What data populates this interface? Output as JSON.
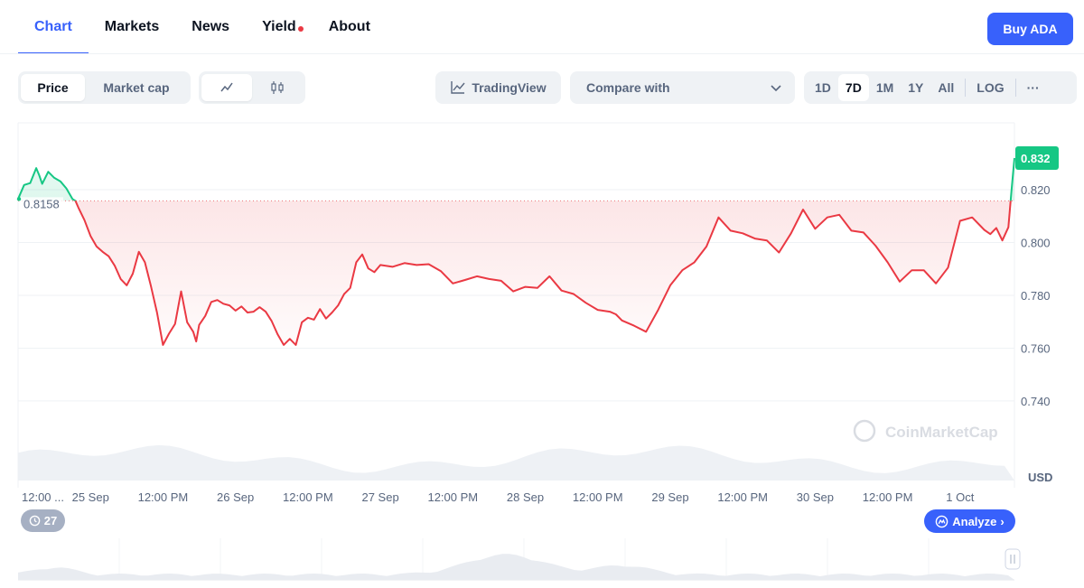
{
  "nav": {
    "tabs": [
      {
        "label": "Chart"
      },
      {
        "label": "Markets"
      },
      {
        "label": "News"
      },
      {
        "label": "Yield"
      },
      {
        "label": "About"
      }
    ],
    "buy_label": "Buy ADA"
  },
  "toolbar": {
    "price_label": "Price",
    "marketcap_label": "Market cap",
    "tradingview_label": "TradingView",
    "compare_label": "Compare with",
    "ranges": [
      "1D",
      "7D",
      "1M",
      "1Y",
      "All"
    ],
    "log_label": "LOG",
    "more_label": "···"
  },
  "history_count": "27",
  "analyze_label": "Analyze",
  "watermark": "CoinMarketCap",
  "colors": {
    "up": "#16c784",
    "down": "#ea3943",
    "accent": "#3861fb"
  },
  "chart_data": {
    "type": "line",
    "title": "",
    "xlabel": "",
    "ylabel": "USD",
    "unit_label": "USD",
    "ylim": [
      0.73,
      0.85
    ],
    "yticks": [
      0.74,
      0.76,
      0.78,
      0.8,
      0.82
    ],
    "ytick_labels": [
      "0.740",
      "0.760",
      "0.780",
      "0.800",
      "0.820"
    ],
    "xtick_labels": [
      "12:00 ...",
      "25 Sep",
      "12:00 PM",
      "26 Sep",
      "12:00 PM",
      "27 Sep",
      "12:00 PM",
      "28 Sep",
      "12:00 PM",
      "29 Sep",
      "12:00 PM",
      "30 Sep",
      "12:00 PM",
      "1 Oct"
    ],
    "xtick_hours": [
      0,
      12,
      24,
      36,
      48,
      60,
      72,
      84,
      96,
      108,
      120,
      132,
      144,
      156
    ],
    "baseline": 0.8158,
    "baseline_label": "0.8158",
    "current_value": 0.832,
    "current_label": "0.832",
    "series": [
      {
        "hours": [
          0,
          1,
          2,
          3,
          3.5,
          4,
          5,
          6,
          7,
          8,
          9,
          9.5,
          10,
          11,
          12,
          13,
          14,
          15,
          16,
          17,
          18,
          19,
          20,
          21,
          22,
          23,
          24,
          25,
          26,
          27,
          28,
          29,
          29.5,
          30,
          31,
          32,
          33,
          34,
          35,
          36,
          37,
          38,
          39,
          40,
          41,
          42,
          43,
          44,
          45,
          46,
          47,
          48,
          49,
          50,
          51,
          52,
          53,
          54,
          55,
          56,
          57,
          58,
          59,
          60,
          62,
          64,
          66,
          68,
          70,
          72,
          74,
          76,
          78,
          80,
          82,
          84,
          86,
          88,
          90,
          92,
          94,
          96,
          98,
          99,
          100,
          102,
          104,
          106,
          108,
          110,
          112,
          114,
          116,
          118,
          120,
          122,
          124,
          126,
          128,
          130,
          132,
          134,
          136,
          138,
          140,
          142,
          144,
          146,
          148,
          150,
          152,
          154,
          156,
          158,
          160,
          161,
          162,
          163,
          164,
          164.5,
          165
        ],
        "values": [
          0.8165,
          0.8218,
          0.8225,
          0.8282,
          0.8255,
          0.8222,
          0.8268,
          0.8245,
          0.8232,
          0.8205,
          0.8165,
          0.8158,
          0.8132,
          0.8085,
          0.8025,
          0.7985,
          0.7965,
          0.7948,
          0.7912,
          0.7862,
          0.7838,
          0.7882,
          0.7965,
          0.7925,
          0.7835,
          0.7735,
          0.7612,
          0.7655,
          0.7692,
          0.7815,
          0.7698,
          0.7662,
          0.7625,
          0.7688,
          0.7722,
          0.7775,
          0.7782,
          0.7768,
          0.7762,
          0.7742,
          0.7758,
          0.7735,
          0.7738,
          0.7755,
          0.7738,
          0.7702,
          0.7652,
          0.7612,
          0.7635,
          0.7612,
          0.7698,
          0.7715,
          0.7708,
          0.7748,
          0.7712,
          0.7735,
          0.7762,
          0.7805,
          0.7828,
          0.7925,
          0.7955,
          0.7902,
          0.7888,
          0.7915,
          0.7908,
          0.7922,
          0.7915,
          0.7918,
          0.7892,
          0.7845,
          0.7858,
          0.7872,
          0.7862,
          0.7855,
          0.7815,
          0.7832,
          0.7828,
          0.7872,
          0.7818,
          0.7805,
          0.7772,
          0.7745,
          0.7738,
          0.7728,
          0.7705,
          0.7685,
          0.7662,
          0.7745,
          0.7838,
          0.7895,
          0.7925,
          0.7985,
          0.8095,
          0.8045,
          0.8035,
          0.8015,
          0.8008,
          0.7962,
          0.8035,
          0.8125,
          0.8052,
          0.8095,
          0.8105,
          0.8045,
          0.8038,
          0.7988,
          0.7925,
          0.7852,
          0.7895,
          0.7895,
          0.7845,
          0.7905,
          0.8082,
          0.8095,
          0.8048,
          0.8032,
          0.8055,
          0.8008,
          0.8058,
          0.8195,
          0.832
        ]
      }
    ]
  }
}
